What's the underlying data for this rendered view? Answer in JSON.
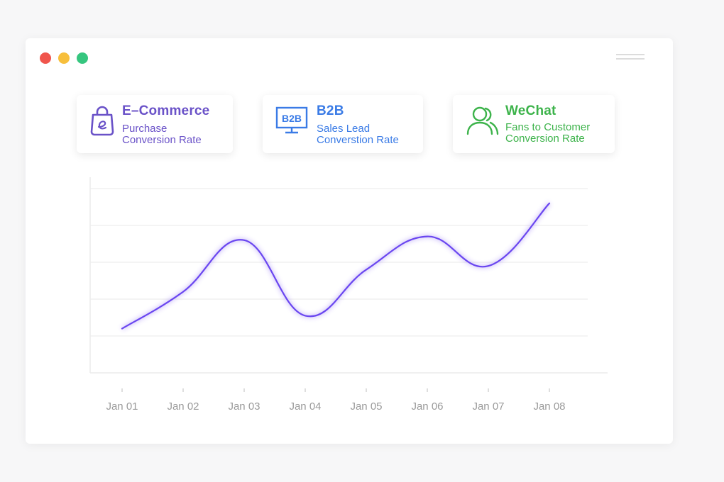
{
  "colors": {
    "ecommerce": "#6a52c8",
    "b2b": "#3a7be6",
    "wechat": "#3db34b",
    "line": "#6a46f0"
  },
  "window": {
    "controls": [
      "close",
      "minimize",
      "maximize"
    ],
    "menu_icon": "hamburger-icon"
  },
  "cards": {
    "ecommerce": {
      "icon": "shopping-bag-icon",
      "title": "E–Commerce",
      "sub1": "Purchase",
      "sub2": "Conversion Rate"
    },
    "b2b": {
      "icon": "b2b-monitor-icon",
      "icon_text": "B2B",
      "title": "B2B",
      "sub1": "Sales Lead",
      "sub2": "Converstion Rate"
    },
    "wechat": {
      "icon": "users-icon",
      "title": "WeChat",
      "sub1": "Fans to Customer",
      "sub2": "Conversion Rate"
    }
  },
  "chart_data": {
    "type": "line",
    "x": [
      "Jan 01",
      "Jan 02",
      "Jan 03",
      "Jan 04",
      "Jan 05",
      "Jan 06",
      "Jan 07",
      "Jan 08"
    ],
    "series": [
      {
        "values": [
          1.2,
          2.2,
          3.6,
          1.55,
          2.8,
          3.7,
          2.9,
          4.6
        ]
      }
    ],
    "ylim": [
      0,
      5
    ],
    "grid": true,
    "y_tick_labels_shown": false
  }
}
